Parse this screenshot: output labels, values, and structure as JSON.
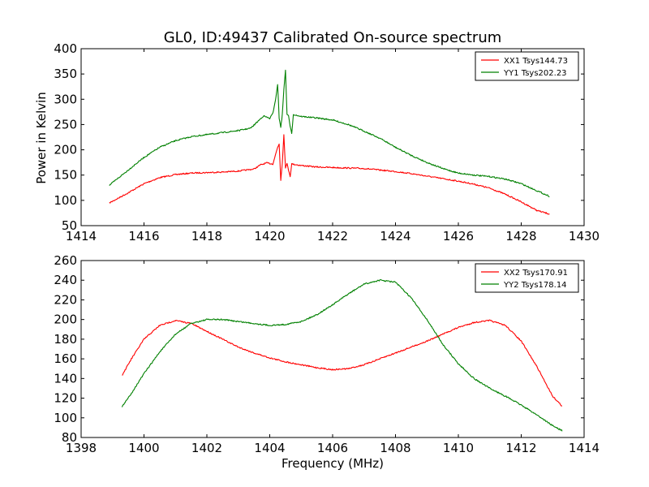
{
  "figure": {
    "title": "GL0, ID:49437 Calibrated On-source spectrum",
    "xlabel": "Frequency (MHz)",
    "ylabel": "Power in Kelvin"
  },
  "chart_data": [
    {
      "type": "line",
      "xlim": [
        1414,
        1430
      ],
      "ylim": [
        50,
        400
      ],
      "xticks": [
        1414,
        1416,
        1418,
        1420,
        1422,
        1424,
        1426,
        1428,
        1430
      ],
      "yticks": [
        50,
        100,
        150,
        200,
        250,
        300,
        350,
        400
      ],
      "legend_position": "top-right",
      "grid": false,
      "series": [
        {
          "name": "XX1 Tsys144.73",
          "color": "#ff0000",
          "points": [
            [
              1414.9,
              95
            ],
            [
              1415.5,
              115
            ],
            [
              1416,
              133
            ],
            [
              1416.5,
              145
            ],
            [
              1417,
              151
            ],
            [
              1417.5,
              154
            ],
            [
              1418,
              155
            ],
            [
              1418.5,
              156
            ],
            [
              1419,
              158
            ],
            [
              1419.5,
              162
            ],
            [
              1419.7,
              170
            ],
            [
              1419.9,
              174
            ],
            [
              1420.1,
              172
            ],
            [
              1420.25,
              205
            ],
            [
              1420.3,
              212
            ],
            [
              1420.35,
              140
            ],
            [
              1420.4,
              175
            ],
            [
              1420.45,
              230
            ],
            [
              1420.5,
              165
            ],
            [
              1420.55,
              172
            ],
            [
              1420.6,
              160
            ],
            [
              1420.65,
              148
            ],
            [
              1420.7,
              172
            ],
            [
              1421,
              169
            ],
            [
              1421.5,
              166
            ],
            [
              1422,
              165
            ],
            [
              1422.5,
              164
            ],
            [
              1423,
              163
            ],
            [
              1423.5,
              160
            ],
            [
              1424,
              157
            ],
            [
              1424.5,
              153
            ],
            [
              1425,
              148
            ],
            [
              1425.5,
              143
            ],
            [
              1426,
              138
            ],
            [
              1426.5,
              132
            ],
            [
              1427,
              124
            ],
            [
              1427.5,
              112
            ],
            [
              1428,
              97
            ],
            [
              1428.5,
              80
            ],
            [
              1428.9,
              73
            ]
          ]
        },
        {
          "name": "YY1 Tsys202.23",
          "color": "#008000",
          "points": [
            [
              1414.9,
              130
            ],
            [
              1415.5,
              160
            ],
            [
              1416,
              185
            ],
            [
              1416.5,
              205
            ],
            [
              1417,
              218
            ],
            [
              1417.5,
              226
            ],
            [
              1418,
              230
            ],
            [
              1418.5,
              234
            ],
            [
              1419,
              238
            ],
            [
              1419.4,
              243
            ],
            [
              1419.6,
              255
            ],
            [
              1419.8,
              267
            ],
            [
              1420,
              262
            ],
            [
              1420.1,
              272
            ],
            [
              1420.2,
              305
            ],
            [
              1420.25,
              330
            ],
            [
              1420.3,
              262
            ],
            [
              1420.35,
              245
            ],
            [
              1420.4,
              270
            ],
            [
              1420.45,
              320
            ],
            [
              1420.5,
              358
            ],
            [
              1420.55,
              270
            ],
            [
              1420.6,
              268
            ],
            [
              1420.65,
              245
            ],
            [
              1420.7,
              232
            ],
            [
              1420.75,
              270
            ],
            [
              1421,
              266
            ],
            [
              1421.5,
              263
            ],
            [
              1422,
              259
            ],
            [
              1422.5,
              250
            ],
            [
              1423,
              237
            ],
            [
              1423.5,
              223
            ],
            [
              1424,
              205
            ],
            [
              1424.5,
              189
            ],
            [
              1425,
              175
            ],
            [
              1425.5,
              163
            ],
            [
              1426,
              154
            ],
            [
              1426.5,
              150
            ],
            [
              1427,
              147
            ],
            [
              1427.5,
              142
            ],
            [
              1428,
              133
            ],
            [
              1428.5,
              119
            ],
            [
              1428.9,
              108
            ]
          ]
        }
      ]
    },
    {
      "type": "line",
      "xlim": [
        1398,
        1414
      ],
      "ylim": [
        80,
        260
      ],
      "xticks": [
        1398,
        1400,
        1402,
        1404,
        1406,
        1408,
        1410,
        1412,
        1414
      ],
      "yticks": [
        80,
        100,
        120,
        140,
        160,
        180,
        200,
        220,
        240,
        260
      ],
      "legend_position": "top-right",
      "grid": false,
      "series": [
        {
          "name": "XX2 Tsys170.91",
          "color": "#ff0000",
          "points": [
            [
              1399.3,
              143
            ],
            [
              1399.6,
              160
            ],
            [
              1400,
              180
            ],
            [
              1400.5,
              194
            ],
            [
              1401,
              199
            ],
            [
              1401.5,
              196
            ],
            [
              1402,
              188
            ],
            [
              1402.5,
              180
            ],
            [
              1403,
              172
            ],
            [
              1403.5,
              166
            ],
            [
              1404,
              161
            ],
            [
              1404.5,
              157
            ],
            [
              1405,
              154
            ],
            [
              1405.5,
              151
            ],
            [
              1406,
              149
            ],
            [
              1406.5,
              150
            ],
            [
              1407,
              154
            ],
            [
              1407.5,
              160
            ],
            [
              1408,
              166
            ],
            [
              1408.5,
              172
            ],
            [
              1409,
              178
            ],
            [
              1409.5,
              185
            ],
            [
              1410,
              192
            ],
            [
              1410.5,
              197
            ],
            [
              1411,
              199
            ],
            [
              1411.5,
              194
            ],
            [
              1412,
              178
            ],
            [
              1412.5,
              152
            ],
            [
              1413,
              122
            ],
            [
              1413.3,
              112
            ]
          ]
        },
        {
          "name": "YY2 Tsys178.14",
          "color": "#008000",
          "points": [
            [
              1399.3,
              111
            ],
            [
              1399.6,
              125
            ],
            [
              1400,
              145
            ],
            [
              1400.5,
              167
            ],
            [
              1401,
              185
            ],
            [
              1401.5,
              196
            ],
            [
              1402,
              200
            ],
            [
              1402.5,
              200
            ],
            [
              1403,
              198
            ],
            [
              1403.5,
              196
            ],
            [
              1404,
              194
            ],
            [
              1404.5,
              195
            ],
            [
              1405,
              198
            ],
            [
              1405.5,
              205
            ],
            [
              1406,
              215
            ],
            [
              1406.5,
              226
            ],
            [
              1407,
              236
            ],
            [
              1407.5,
              240
            ],
            [
              1408,
              238
            ],
            [
              1408.5,
              222
            ],
            [
              1409,
              200
            ],
            [
              1409.5,
              175
            ],
            [
              1410,
              155
            ],
            [
              1410.5,
              140
            ],
            [
              1411,
              130
            ],
            [
              1411.5,
              122
            ],
            [
              1412,
              113
            ],
            [
              1412.5,
              103
            ],
            [
              1413,
              92
            ],
            [
              1413.3,
              87
            ]
          ]
        }
      ]
    }
  ]
}
